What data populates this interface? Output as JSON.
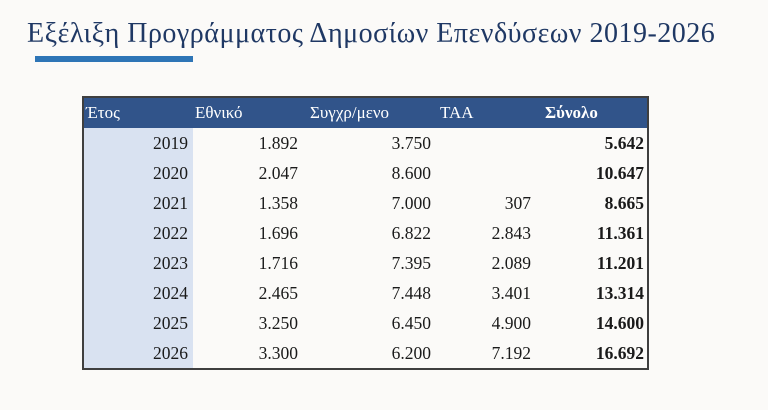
{
  "slide": {
    "title": "Εξέλιξη Προγράμματος Δημοσίων Επενδύσεων 2019-2026"
  },
  "table": {
    "columns": [
      "Έτος",
      "Εθνικό",
      "Συγχρ/μενο",
      "ΤΑΑ",
      "Σύνολο"
    ],
    "rows": [
      [
        "2019",
        "1.892",
        "3.750",
        "",
        "5.642"
      ],
      [
        "2020",
        "2.047",
        "8.600",
        "",
        "10.647"
      ],
      [
        "2021",
        "1.358",
        "7.000",
        "307",
        "8.665"
      ],
      [
        "2022",
        "1.696",
        "6.822",
        "2.843",
        "11.361"
      ],
      [
        "2023",
        "1.716",
        "7.395",
        "2.089",
        "11.201"
      ],
      [
        "2024",
        "2.465",
        "7.448",
        "3.401",
        "13.314"
      ],
      [
        "2025",
        "3.250",
        "6.450",
        "4.900",
        "14.600"
      ],
      [
        "2026",
        "3.300",
        "6.200",
        "7.192",
        "16.692"
      ]
    ]
  },
  "chart_data": {
    "type": "table",
    "title": "Εξέλιξη Προγράμματος Δημοσίων Επενδύσεων 2019-2026",
    "columns": [
      "Έτος",
      "Εθνικό",
      "Συγχρ/μενο",
      "ΤΑΑ",
      "Σύνολο"
    ],
    "rows": [
      [
        "2019",
        "1.892",
        "3.750",
        "",
        "5.642"
      ],
      [
        "2020",
        "2.047",
        "8.600",
        "",
        "10.647"
      ],
      [
        "2021",
        "1.358",
        "7.000",
        "307",
        "8.665"
      ],
      [
        "2022",
        "1.696",
        "6.822",
        "2.843",
        "11.361"
      ],
      [
        "2023",
        "1.716",
        "7.395",
        "2.089",
        "11.201"
      ],
      [
        "2024",
        "2.465",
        "7.448",
        "3.401",
        "13.314"
      ],
      [
        "2025",
        "3.250",
        "6.450",
        "4.900",
        "14.600"
      ],
      [
        "2026",
        "3.300",
        "6.200",
        "7.192",
        "16.692"
      ]
    ]
  },
  "colors": {
    "title": "#1F3864",
    "underline": "#2E75B6",
    "header_bg": "#31548A",
    "header_text": "#FFFFFF",
    "year_column_bg": "#D9E2F1",
    "body_text": "#1A1A1A",
    "table_border": "#3F3F3F"
  }
}
